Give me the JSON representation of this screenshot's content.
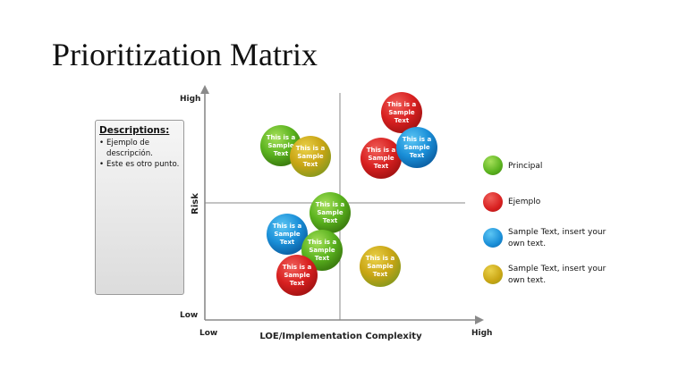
{
  "title": "Prioritization Matrix",
  "descriptions": {
    "heading": "Descriptions:",
    "items": [
      "Ejemplo de descripción.",
      "Este es otro punto."
    ]
  },
  "axes": {
    "y_label": "Risk",
    "y_high": "High",
    "y_low": "Low",
    "x_label": "LOE/Implementation Complexity",
    "x_low": "Low",
    "x_high": "High"
  },
  "bubble_text": [
    "This is a",
    "Sample",
    "Text"
  ],
  "colors": {
    "green": "#5ab21e",
    "red": "#d82020",
    "blue": "#1a8fd8",
    "yellow": "#c9a514"
  },
  "legend": [
    {
      "color": "green",
      "label": "Principal"
    },
    {
      "color": "red",
      "label": "Ejemplo"
    },
    {
      "color": "blue",
      "label": "Sample Text, insert your own text."
    },
    {
      "color": "yellow",
      "label": "Sample Text, insert your own text."
    }
  ],
  "bubbles": [
    {
      "color": "green"
    },
    {
      "color": "yellow"
    },
    {
      "color": "red"
    },
    {
      "color": "red"
    },
    {
      "color": "blue"
    },
    {
      "color": "green"
    },
    {
      "color": "blue"
    },
    {
      "color": "green"
    },
    {
      "color": "red"
    },
    {
      "color": "yellow"
    }
  ]
}
